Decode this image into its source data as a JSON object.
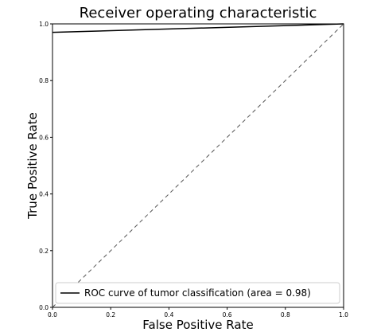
{
  "chart_data": {
    "type": "line",
    "title": "Receiver operating characteristic",
    "xlabel": "False Positive Rate",
    "ylabel": "True Positive Rate",
    "xlim": [
      0.0,
      1.0
    ],
    "ylim": [
      0.0,
      1.0
    ],
    "x_ticks": [
      "0.0",
      "0.2",
      "0.4",
      "0.6",
      "0.8",
      "1.0"
    ],
    "y_ticks": [
      "0.0",
      "0.2",
      "0.4",
      "0.6",
      "0.8",
      "1.0"
    ],
    "grid": false,
    "legend_position": "lower-right",
    "series": [
      {
        "name": "ROC curve of tumor classification (area = 0.98)",
        "style": "solid",
        "color": "#000000",
        "x": [
          0.0,
          1.0
        ],
        "y": [
          0.97,
          1.0
        ]
      },
      {
        "style": "dashed",
        "color": "#555555",
        "x": [
          0.0,
          1.0
        ],
        "y": [
          0.0,
          1.0
        ]
      }
    ]
  }
}
